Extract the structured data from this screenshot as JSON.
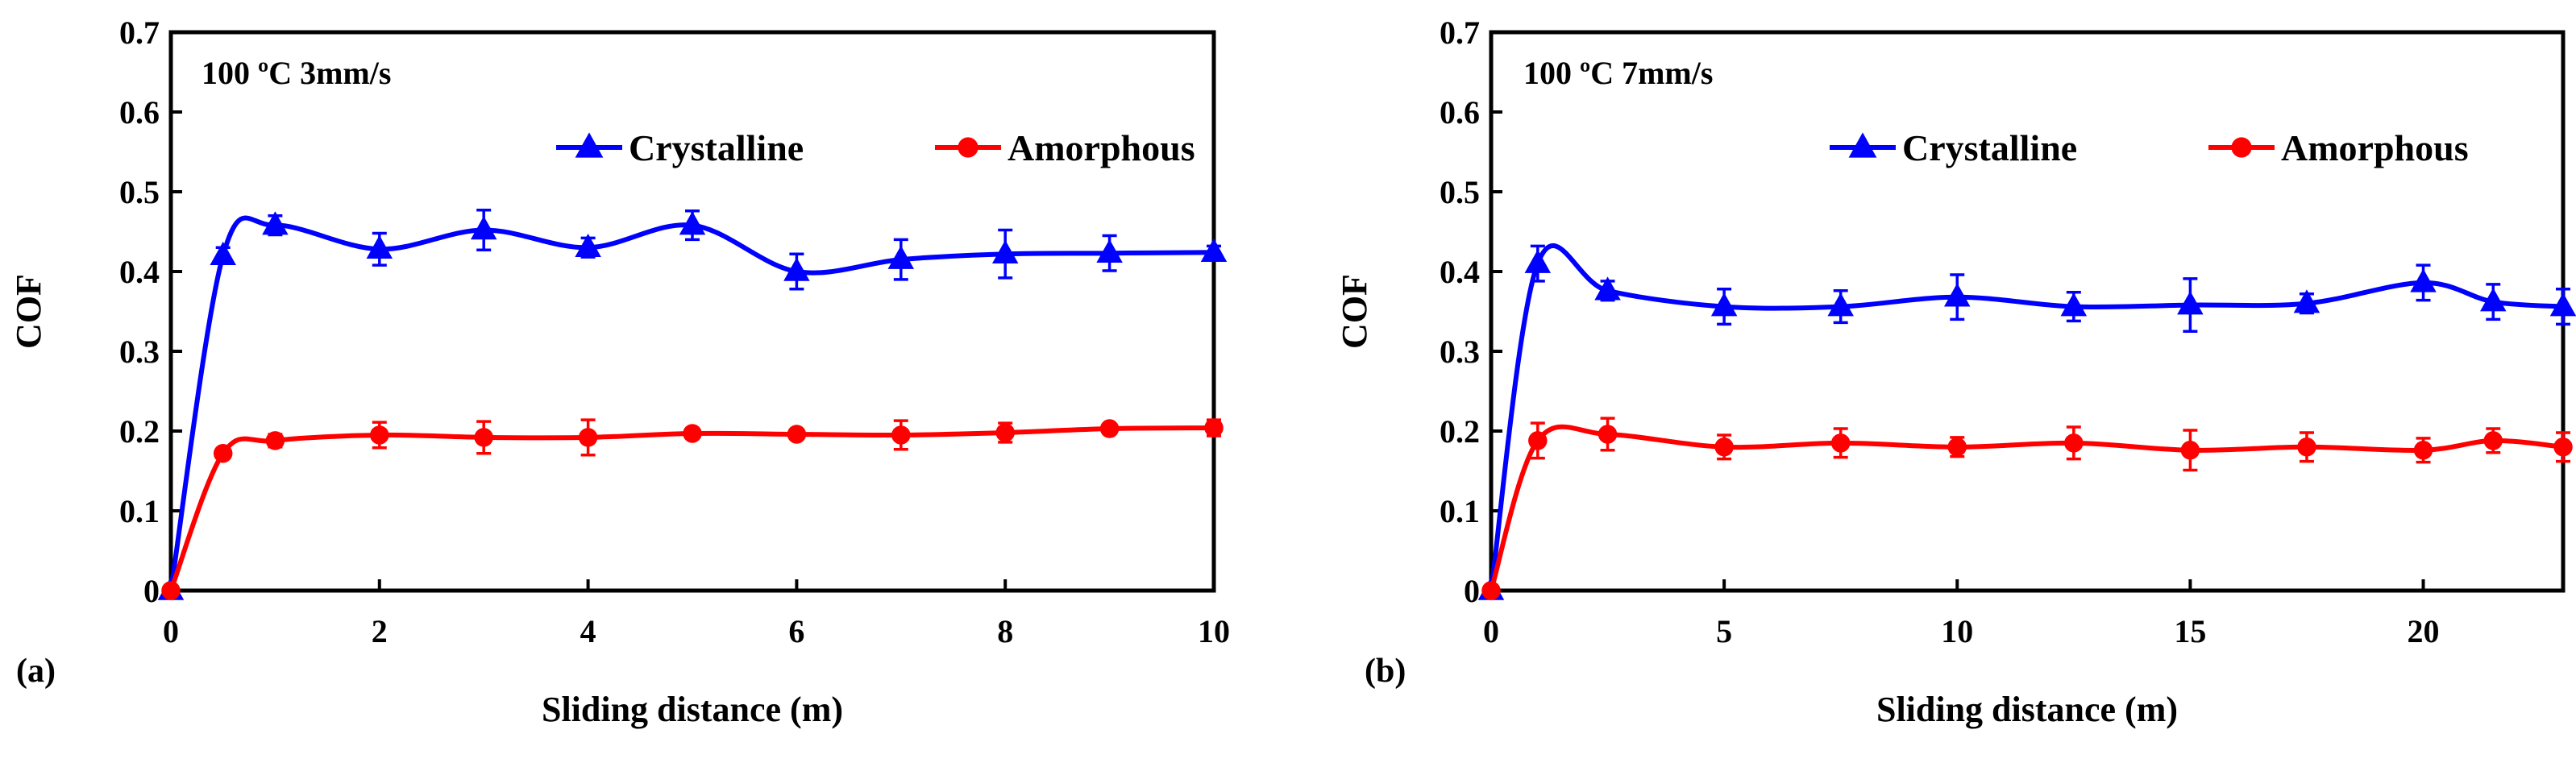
{
  "colors": {
    "crystalline": "#0000ff",
    "amorphous": "#ff0000",
    "axis": "#000000"
  },
  "chart_data": [
    {
      "type": "line",
      "panel_label": "(a)",
      "title": "100 ºC 3mm/s",
      "xlabel": "Sliding distance (m)",
      "ylabel": "COF",
      "xlim": [
        0,
        10
      ],
      "ylim": [
        0,
        0.7
      ],
      "xticks": [
        0,
        2,
        4,
        6,
        8,
        10
      ],
      "yticks": [
        0,
        0.1,
        0.2,
        0.3,
        0.4,
        0.5,
        0.6,
        0.7
      ],
      "xtick_labels": [
        "0",
        "2",
        "4",
        "6",
        "8",
        "10"
      ],
      "ytick_labels": [
        "0",
        "0.1",
        "0.2",
        "0.3",
        "0.4",
        "0.5",
        "0.6",
        "0.7"
      ],
      "legend_location": "upper-right",
      "series": [
        {
          "name": "Crystalline",
          "marker": "triangle",
          "color": "#0000ff",
          "x": [
            0,
            0.5,
            1,
            2,
            3,
            4,
            5,
            6,
            7,
            8,
            9,
            10
          ],
          "y": [
            0,
            0.42,
            0.458,
            0.428,
            0.452,
            0.43,
            0.458,
            0.4,
            0.415,
            0.422,
            0.423,
            0.424
          ],
          "err": [
            0,
            0.01,
            0.012,
            0.02,
            0.025,
            0.012,
            0.018,
            0.022,
            0.025,
            0.03,
            0.022,
            0.008
          ]
        },
        {
          "name": "Amorphous",
          "marker": "circle",
          "color": "#ff0000",
          "x": [
            0,
            0.5,
            1,
            2,
            3,
            4,
            5,
            6,
            7,
            8,
            9,
            10
          ],
          "y": [
            0,
            0.172,
            0.188,
            0.195,
            0.192,
            0.192,
            0.197,
            0.196,
            0.195,
            0.198,
            0.203,
            0.204
          ],
          "err": [
            0,
            0.005,
            0.008,
            0.016,
            0.02,
            0.022,
            0.005,
            0.005,
            0.018,
            0.012,
            0.005,
            0.01
          ]
        }
      ]
    },
    {
      "type": "line",
      "panel_label": "(b)",
      "title": "100 ºC 7mm/s",
      "xlabel": "Sliding distance (m)",
      "ylabel": "COF",
      "xlim": [
        0,
        23
      ],
      "ylim": [
        0,
        0.7
      ],
      "xticks": [
        0,
        5,
        10,
        15,
        20
      ],
      "yticks": [
        0,
        0.1,
        0.2,
        0.3,
        0.4,
        0.5,
        0.6,
        0.7
      ],
      "xtick_labels": [
        "0",
        "5",
        "10",
        "15",
        "20"
      ],
      "ytick_labels": [
        "0",
        "0.1",
        "0.2",
        "0.3",
        "0.4",
        "0.5",
        "0.6",
        "0.7"
      ],
      "legend_location": "upper-right",
      "series": [
        {
          "name": "Crystalline",
          "marker": "triangle",
          "color": "#0000ff",
          "x": [
            0,
            1,
            2.5,
            5,
            7.5,
            10,
            12.5,
            15,
            17.5,
            20,
            21.5,
            23
          ],
          "y": [
            0,
            0.41,
            0.376,
            0.356,
            0.356,
            0.368,
            0.356,
            0.358,
            0.36,
            0.386,
            0.362,
            0.356
          ],
          "err": [
            0,
            0.022,
            0.012,
            0.022,
            0.02,
            0.028,
            0.018,
            0.033,
            0.012,
            0.022,
            0.022,
            0.022
          ]
        },
        {
          "name": "Amorphous",
          "marker": "circle",
          "color": "#ff0000",
          "x": [
            0,
            1,
            2.5,
            5,
            7.5,
            10,
            12.5,
            15,
            17.5,
            20,
            21.5,
            23
          ],
          "y": [
            0,
            0.188,
            0.196,
            0.18,
            0.185,
            0.18,
            0.185,
            0.176,
            0.18,
            0.176,
            0.188,
            0.18
          ],
          "err": [
            0,
            0.022,
            0.02,
            0.015,
            0.018,
            0.012,
            0.02,
            0.025,
            0.018,
            0.015,
            0.015,
            0.018
          ]
        }
      ]
    }
  ]
}
